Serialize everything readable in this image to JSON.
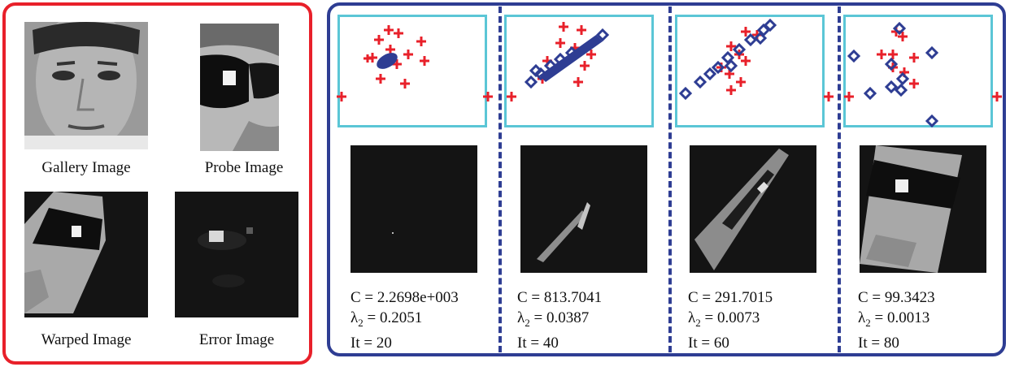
{
  "left_panel": {
    "gallery_caption": "Gallery Image",
    "probe_caption": "Probe  Image",
    "warped_caption": "Warped Image",
    "error_caption": "Error Image"
  },
  "iterations": [
    {
      "C": "2.2698e+003",
      "lambda2": "0.2051",
      "it": "20"
    },
    {
      "C": "813.7041",
      "lambda2": "0.0387",
      "it": "40"
    },
    {
      "C": "291.7015",
      "lambda2": "0.0073",
      "it": "60"
    },
    {
      "C": "99.3423",
      "lambda2": "0.0013",
      "it": "80"
    }
  ],
  "labels": {
    "c_prefix": "C = ",
    "lambda_symbol": "λ",
    "lambda_sub": "2",
    "eq": " = ",
    "it_prefix": "It = "
  },
  "colors": {
    "left_frame": "#e8202a",
    "right_frame": "#2e3d93",
    "plot_border": "#5bc6d6",
    "plus_marker": "#e8202a",
    "diamond_marker": "#2e3d93"
  }
}
